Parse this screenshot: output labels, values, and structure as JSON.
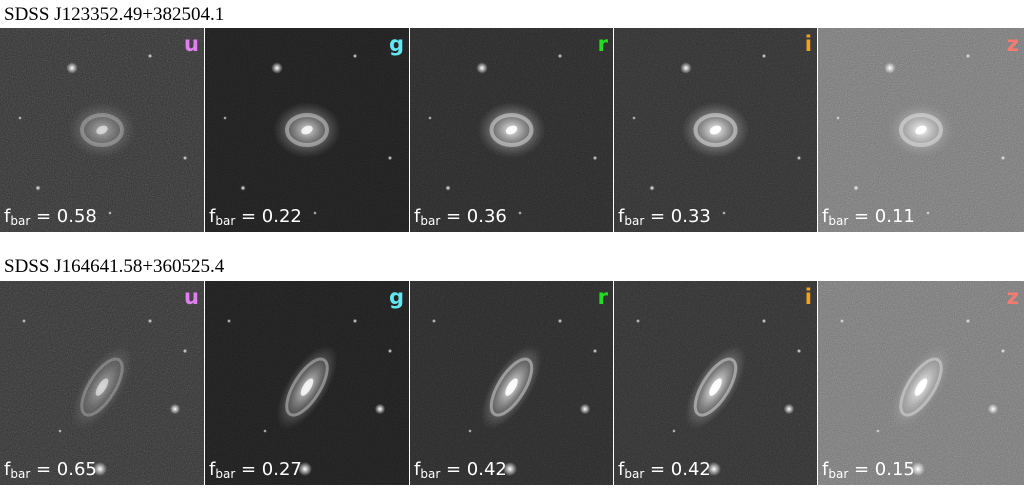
{
  "colors": {
    "u": "#e07ff0",
    "g": "#62e6f2",
    "r": "#22dd22",
    "i": "#f6a020",
    "z": "#f37b70"
  },
  "rows": [
    {
      "title": "SDSS J123352.49+382504.1",
      "panels": [
        {
          "band": "u",
          "f": "f",
          "sub": "bar",
          "value": "= 0.58"
        },
        {
          "band": "g",
          "f": "f",
          "sub": "bar",
          "value": "= 0.22"
        },
        {
          "band": "r",
          "f": "f",
          "sub": "bar",
          "value": "= 0.36"
        },
        {
          "band": "i",
          "f": "f",
          "sub": "bar",
          "value": "= 0.33"
        },
        {
          "band": "z",
          "f": "f",
          "sub": "bar",
          "value": "= 0.11"
        }
      ]
    },
    {
      "title": "SDSS J164641.58+360525.4",
      "panels": [
        {
          "band": "u",
          "f": "f",
          "sub": "bar",
          "value": "= 0.65"
        },
        {
          "band": "g",
          "f": "f",
          "sub": "bar",
          "value": "= 0.27"
        },
        {
          "band": "r",
          "f": "f",
          "sub": "bar",
          "value": "= 0.42"
        },
        {
          "band": "i",
          "f": "f",
          "sub": "bar",
          "value": "= 0.42"
        },
        {
          "band": "z",
          "f": "f",
          "sub": "bar",
          "value": "= 0.15"
        }
      ]
    }
  ]
}
